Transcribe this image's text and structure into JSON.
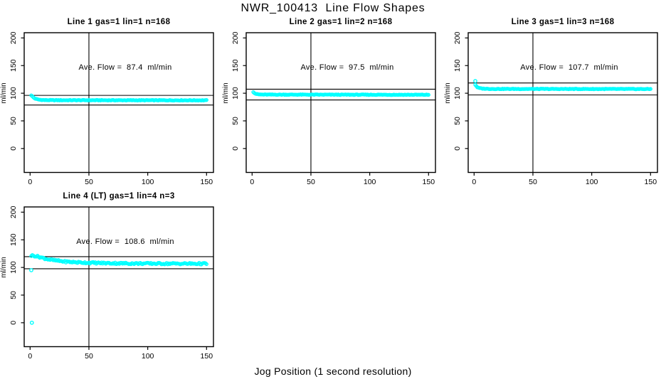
{
  "title": "NWR_100413  Line Flow Shapes",
  "xlabel": "Jog Position (1 second resolution)",
  "colors": {
    "points": "#00ffff",
    "axis": "#000000",
    "background": "#ffffff"
  },
  "chart_data": [
    {
      "type": "scatter",
      "title": "Line 1 gas=1 lin=1 n=168",
      "annotation": "Ave. Flow =  87.4  ml/min",
      "ave_flow": 87.4,
      "n": 168,
      "ylabel": "ml/min",
      "x_ticks": [
        0,
        50,
        100,
        150
      ],
      "y_ticks": [
        0,
        50,
        100,
        150,
        200
      ],
      "xlim": [
        0,
        150
      ],
      "ylim": [
        0,
        200
      ],
      "vline_x": 50,
      "hlines": [
        96.1,
        78.7
      ],
      "curve_keypoints": [
        [
          1,
          96.5
        ],
        [
          2,
          94
        ],
        [
          3,
          92
        ],
        [
          4,
          90.5
        ],
        [
          6,
          89
        ],
        [
          8,
          88.2
        ],
        [
          12,
          87.6
        ],
        [
          20,
          87.4
        ],
        [
          150,
          87.2
        ]
      ],
      "outliers": [],
      "noise": 0.55,
      "n_points": 168,
      "x_end": 150,
      "seed": 1
    },
    {
      "type": "scatter",
      "title": "Line 2 gas=1 lin=2 n=168",
      "annotation": "Ave. Flow =  97.5  ml/min",
      "ave_flow": 97.5,
      "n": 168,
      "ylabel": "ml/min",
      "x_ticks": [
        0,
        50,
        100,
        150
      ],
      "y_ticks": [
        0,
        50,
        100,
        150,
        200
      ],
      "xlim": [
        0,
        150
      ],
      "ylim": [
        0,
        200
      ],
      "vline_x": 50,
      "hlines": [
        107.3,
        87.8
      ],
      "curve_keypoints": [
        [
          1,
          102.5
        ],
        [
          2,
          100.5
        ],
        [
          3,
          99
        ],
        [
          5,
          98
        ],
        [
          8,
          97.6
        ],
        [
          15,
          97.5
        ],
        [
          150,
          97.2
        ]
      ],
      "outliers": [],
      "noise": 0.55,
      "n_points": 168,
      "x_end": 150,
      "seed": 2
    },
    {
      "type": "scatter",
      "title": "Line 3 gas=1 lin=3 n=168",
      "annotation": "Ave. Flow =  107.7  ml/min",
      "ave_flow": 107.7,
      "n": 168,
      "ylabel": "ml/min",
      "x_ticks": [
        0,
        50,
        100,
        150
      ],
      "y_ticks": [
        0,
        50,
        100,
        150,
        200
      ],
      "xlim": [
        0,
        150
      ],
      "ylim": [
        0,
        200
      ],
      "vline_x": 50,
      "hlines": [
        118.5,
        96.9
      ],
      "curve_keypoints": [
        [
          1.5,
          115.5
        ],
        [
          2,
          112.5
        ],
        [
          3,
          110.3
        ],
        [
          5,
          109
        ],
        [
          8,
          108.3
        ],
        [
          15,
          107.8
        ],
        [
          150,
          107.6
        ]
      ],
      "outliers": [
        [
          1,
          122
        ]
      ],
      "noise": 0.55,
      "n_points": 168,
      "x_end": 150,
      "seed": 3
    },
    {
      "type": "scatter",
      "title": "Line 4 (LT) gas=1 lin=4 n=3",
      "annotation": "Ave. Flow =  108.6  ml/min",
      "ave_flow": 108.6,
      "n": 3,
      "ylabel": "ml/min",
      "x_ticks": [
        0,
        50,
        100,
        150
      ],
      "y_ticks": [
        0,
        50,
        100,
        150,
        200
      ],
      "xlim": [
        0,
        150
      ],
      "ylim": [
        0,
        200
      ],
      "vline_x": 50,
      "hlines": [
        119.5,
        97.7
      ],
      "curve_keypoints": [
        [
          2,
          121.5
        ],
        [
          4,
          121
        ],
        [
          8,
          119
        ],
        [
          12,
          116.5
        ],
        [
          16,
          114.5
        ],
        [
          22,
          112.5
        ],
        [
          30,
          110.5
        ],
        [
          40,
          109.3
        ],
        [
          50,
          108.5
        ],
        [
          65,
          107.8
        ],
        [
          85,
          107.3
        ],
        [
          110,
          107
        ],
        [
          150,
          106.8
        ]
      ],
      "outliers": [
        [
          1,
          95
        ],
        [
          1.5,
          0
        ]
      ],
      "noise": 1.5,
      "n_points": 168,
      "x_end": 150,
      "seed": 4
    }
  ]
}
